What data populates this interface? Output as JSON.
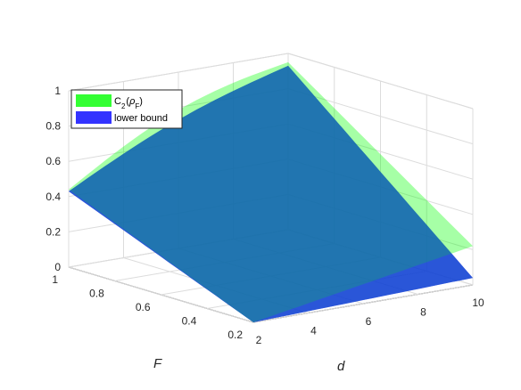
{
  "chart_data": {
    "type": "surface",
    "title": "",
    "xlabel": "d",
    "ylabel": "F",
    "zlabel": "",
    "xlim": [
      2,
      10
    ],
    "ylim": [
      0.2,
      1
    ],
    "zlim": [
      0,
      1
    ],
    "x_ticks": [
      2,
      4,
      6,
      8,
      10
    ],
    "y_ticks": [
      0.2,
      0.4,
      0.6,
      0.8,
      1
    ],
    "z_ticks": [
      0,
      0.2,
      0.4,
      0.6,
      0.8,
      1
    ],
    "x_tick_labels": [
      "2",
      "4",
      "6",
      "8",
      "10"
    ],
    "y_tick_labels": [
      "0.2",
      "0.4",
      "0.6",
      "0.8",
      "1"
    ],
    "z_tick_labels": [
      "0",
      "0.2",
      "0.4",
      "0.6",
      "0.8",
      "1"
    ],
    "grid": true,
    "legend_position": "top-left",
    "series": [
      {
        "name": "C",
        "name_sub": "2",
        "name_arg": "ρ",
        "name_arg_sub": "F",
        "color": "#00ff00",
        "corners": {
          "d2_F02": 0.0,
          "d2_F1": 0.44,
          "d10_F1": 0.95,
          "d10_F02": 0.22
        }
      },
      {
        "name": "lower bound",
        "color": "#0000ff",
        "corners": {
          "d2_F02": 0.0,
          "d2_F1": 0.43,
          "d10_F1": 0.93,
          "d10_F02": 0.04
        }
      }
    ],
    "overlap_color": "#1f6fb8"
  }
}
